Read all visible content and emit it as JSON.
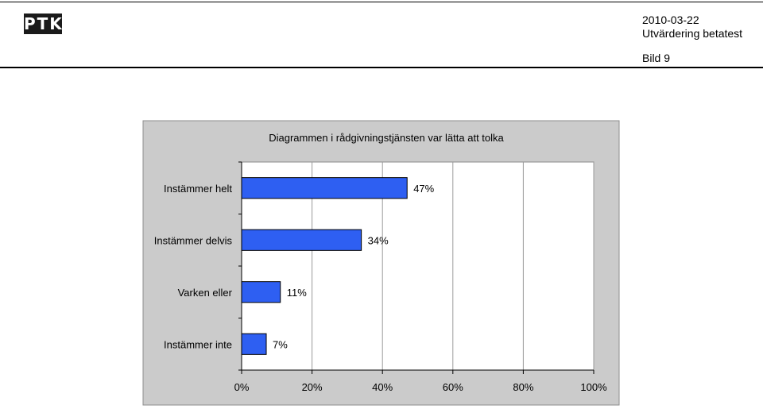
{
  "header": {
    "logo_text": "PTK",
    "date": "2010-03-22",
    "subtitle": "Utvärdering betatest",
    "slide": "Bild 9"
  },
  "colors": {
    "bar_fill": "#2e5ff2",
    "panel_background": "#cbcbcb",
    "plot_background": "#ffffff",
    "grid_line": "#9a9a9a"
  },
  "chart_data": {
    "type": "bar",
    "orientation": "horizontal",
    "title": "Diagrammen i rådgivningstjänsten var lätta att tolka",
    "categories": [
      "Instämmer helt",
      "Instämmer delvis",
      "Varken eller",
      "Instämmer inte"
    ],
    "values": [
      47,
      34,
      11,
      7
    ],
    "value_labels": [
      "47%",
      "34%",
      "11%",
      "7%"
    ],
    "xlim": [
      0,
      100
    ],
    "xticks": [
      0,
      20,
      40,
      60,
      80,
      100
    ],
    "xtick_labels": [
      "0%",
      "20%",
      "40%",
      "60%",
      "80%",
      "100%"
    ],
    "xlabel": "",
    "ylabel": "",
    "grid": "vertical",
    "legend": "none"
  }
}
